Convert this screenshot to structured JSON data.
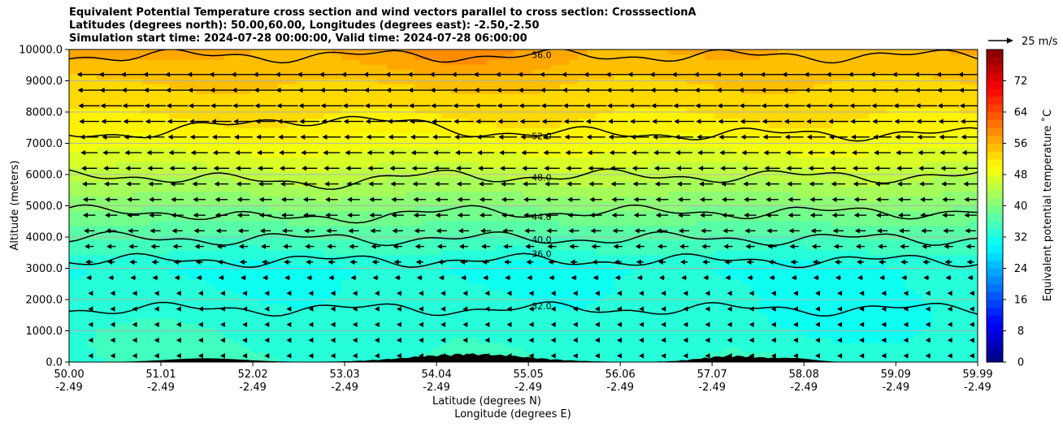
{
  "title": {
    "line1": "Equivalent Potential Temperature cross section and wind vectors parallel to cross section: CrosssectionA",
    "line2": "Latitudes (degrees north): 50.00,60.00, Longitudes (degrees east): -2.50,-2.50",
    "line3": "Simulation start time: 2024-07-28 00:00:00, Valid time: 2024-07-28 06:00:00"
  },
  "colors": {
    "colormap": "jet",
    "contour": "#000000",
    "terrain": "#000000",
    "grid": "#b0b0b0"
  },
  "chart_data": {
    "type": "heatmap",
    "xlabel": "Latitude (degrees N)",
    "xlabel2": "Longitude (degrees E)",
    "ylabel": "Altitude (meters)",
    "xlim": [
      50.0,
      59.99
    ],
    "ylim": [
      0,
      10000
    ],
    "x_ticks": [
      {
        "lat": "50.00",
        "lon": "-2.49"
      },
      {
        "lat": "51.01",
        "lon": "-2.49"
      },
      {
        "lat": "52.02",
        "lon": "-2.49"
      },
      {
        "lat": "53.03",
        "lon": "-2.49"
      },
      {
        "lat": "54.04",
        "lon": "-2.49"
      },
      {
        "lat": "55.05",
        "lon": "-2.49"
      },
      {
        "lat": "56.06",
        "lon": "-2.49"
      },
      {
        "lat": "57.07",
        "lon": "-2.49"
      },
      {
        "lat": "58.08",
        "lon": "-2.49"
      },
      {
        "lat": "59.09",
        "lon": "-2.49"
      },
      {
        "lat": "59.99",
        "lon": "-2.49"
      }
    ],
    "y_ticks": [
      "0.0",
      "1000.0",
      "2000.0",
      "3000.0",
      "4000.0",
      "5000.0",
      "6000.0",
      "7000.0",
      "8000.0",
      "9000.0",
      "10000.0"
    ],
    "grid": true,
    "colorbar": {
      "label": "Equivalent potential temperature ˚C",
      "range": [
        0,
        80
      ],
      "ticks": [
        "0",
        "8",
        "16",
        "24",
        "32",
        "40",
        "48",
        "56",
        "64",
        "72"
      ]
    },
    "wind_key": {
      "label": "25 m/s",
      "speed": 25
    },
    "contours": [
      {
        "level": 32.0,
        "label": "32.0"
      },
      {
        "level": 36.0,
        "label": "36.0"
      },
      {
        "level": 40.0,
        "label": "40.0"
      },
      {
        "level": 44.0,
        "label": "44.0"
      },
      {
        "level": 48.0,
        "label": "48.0"
      },
      {
        "level": 52.0,
        "label": "52.0"
      },
      {
        "level": 56.0,
        "label": "56.0"
      }
    ]
  }
}
